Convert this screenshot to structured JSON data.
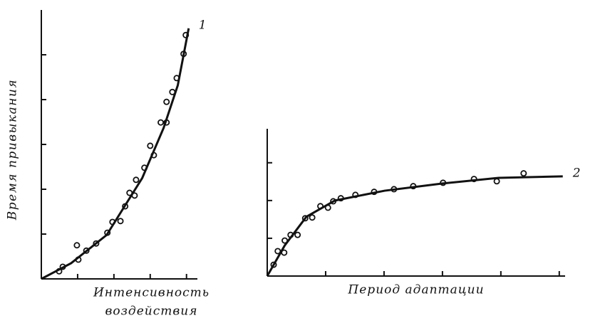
{
  "chart_data": [
    {
      "type": "scatter",
      "ylabel": "Время привыкания",
      "xlabel": [
        "Интенсивность",
        "воздействия"
      ],
      "annotation": "1",
      "xlim": [
        0,
        4.3
      ],
      "ylim": [
        0,
        6
      ],
      "xticks": [
        1,
        2,
        3,
        4
      ],
      "yticks": [
        1,
        2,
        3,
        4,
        5
      ],
      "color": "#111111",
      "series": [
        {
          "type": "scatter",
          "x": [
            0.49,
            0.59,
            0.98,
            1.02,
            1.24,
            1.51,
            1.82,
            1.96,
            2.18,
            2.31,
            2.43,
            2.57,
            2.61,
            2.84,
            3.0,
            3.1,
            3.29,
            3.45,
            3.45,
            3.61,
            3.73,
            3.92,
            3.98
          ],
          "values": [
            0.17,
            0.27,
            0.75,
            0.43,
            0.63,
            0.79,
            1.03,
            1.27,
            1.29,
            1.62,
            1.92,
            1.86,
            2.21,
            2.48,
            2.97,
            2.76,
            3.49,
            3.49,
            3.95,
            4.17,
            4.48,
            5.02,
            5.44
          ]
        },
        {
          "type": "line",
          "x": [
            0,
            0.82,
            1.8,
            2.78,
            3.37,
            3.76,
            4.06
          ],
          "values": [
            0,
            0.35,
            0.98,
            2.25,
            3.37,
            4.32,
            5.59
          ]
        }
      ]
    },
    {
      "type": "scatter",
      "xlabel": [
        "Период адаптации"
      ],
      "annotation": "2",
      "xlim": [
        0,
        5.1
      ],
      "ylim": [
        0,
        3.9
      ],
      "xticks": [
        1,
        2,
        3,
        4,
        5
      ],
      "yticks": [
        1,
        2,
        3
      ],
      "color": "#111111",
      "series": [
        {
          "type": "scatter",
          "x": [
            0.11,
            0.18,
            0.29,
            0.3,
            0.4,
            0.52,
            0.65,
            0.77,
            0.91,
            1.04,
            1.13,
            1.26,
            1.51,
            1.83,
            2.17,
            2.5,
            3.01,
            3.54,
            3.93,
            4.39
          ],
          "values": [
            0.3,
            0.66,
            0.62,
            0.94,
            1.09,
            1.09,
            1.53,
            1.55,
            1.85,
            1.81,
            1.98,
            2.06,
            2.15,
            2.23,
            2.3,
            2.38,
            2.47,
            2.57,
            2.51,
            2.72
          ]
        },
        {
          "type": "line",
          "x": [
            0,
            0.3,
            0.67,
            1.16,
            2.01,
            2.99,
            3.96,
            5.06
          ],
          "values": [
            0,
            0.81,
            1.57,
            2.0,
            2.26,
            2.45,
            2.6,
            2.64
          ]
        }
      ]
    }
  ]
}
